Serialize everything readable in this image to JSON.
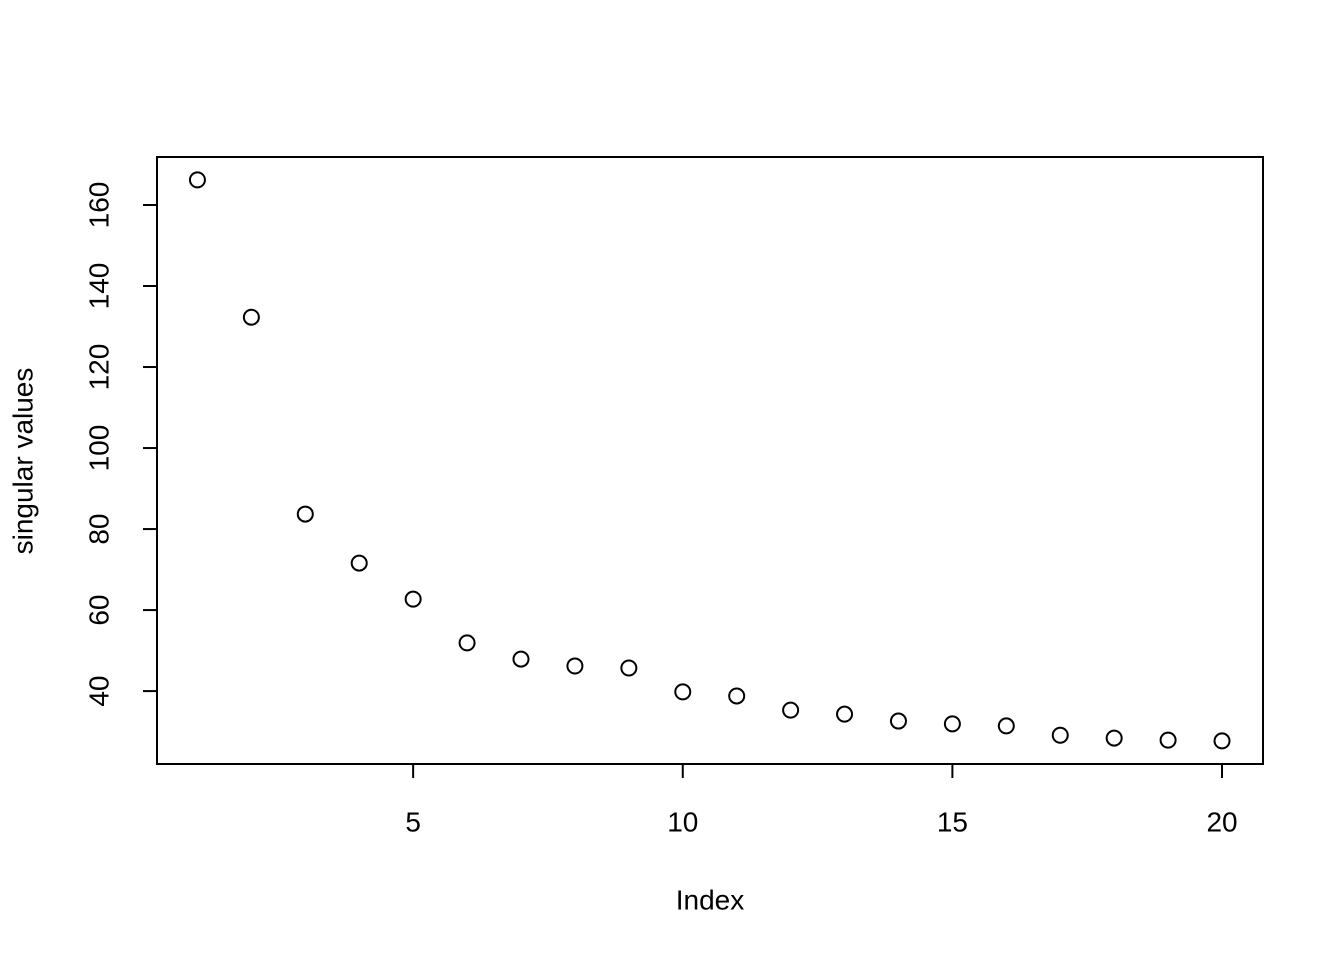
{
  "chart_data": {
    "type": "scatter",
    "x_label": "Index",
    "y_label": "singular values",
    "x": [
      1,
      2,
      3,
      4,
      5,
      6,
      7,
      8,
      9,
      10,
      11,
      12,
      13,
      14,
      15,
      16,
      17,
      18,
      19,
      20
    ],
    "values": [
      166.2,
      132.3,
      83.7,
      71.6,
      62.7,
      51.9,
      47.9,
      46.2,
      45.7,
      39.8,
      38.8,
      35.3,
      34.3,
      32.6,
      31.9,
      31.4,
      29.1,
      28.4,
      27.9,
      27.7
    ],
    "color": "#000000",
    "xlim": [
      0.25,
      20.76
    ],
    "ylim": [
      22.0,
      171.85
    ],
    "xticks": [
      5,
      10,
      15,
      20
    ],
    "yticks": [
      40,
      60,
      80,
      100,
      120,
      140,
      160
    ],
    "grid": false
  }
}
